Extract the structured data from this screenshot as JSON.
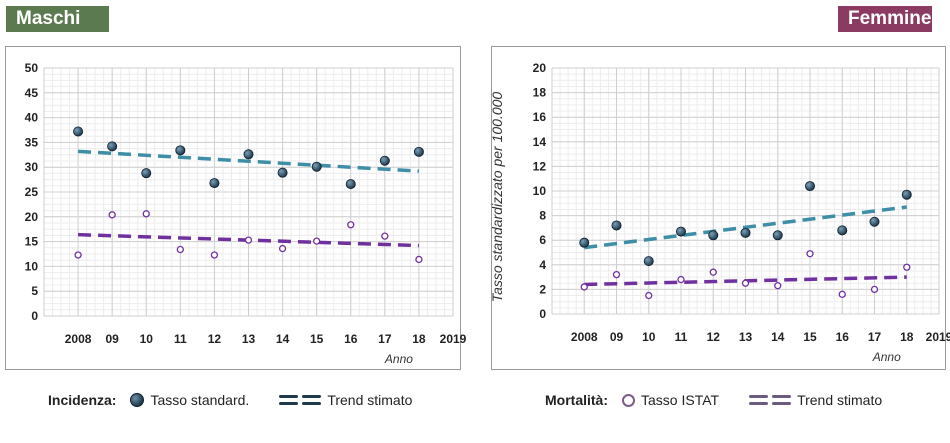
{
  "badges": {
    "male": "Maschi",
    "female": "Femmine"
  },
  "legend": {
    "left_title": "Incidenza:",
    "left_marker": "Tasso  standard.",
    "left_trend": "Trend stimato",
    "right_title": "Mortalità:",
    "right_marker": "Tasso ISTAT",
    "right_trend": "Trend stimato"
  },
  "colors": {
    "teal_trend": "#3d8ea6",
    "purple_trend": "#7030a0",
    "purple_marker": "#7030a0",
    "navy_marker": "#1f3a4d",
    "male_badge": "#5b7a4f",
    "female_badge": "#8b3a62",
    "legend_dash_left": "#1f3a4d",
    "legend_dash_right": "#6a5a80"
  },
  "chart_data": [
    {
      "type": "scatter",
      "panel": "Maschi",
      "xlabel": "Anno",
      "ylabel": "",
      "ylim": [
        0,
        50
      ],
      "yticks": [
        0,
        5,
        10,
        15,
        20,
        25,
        30,
        35,
        40,
        45,
        50
      ],
      "xticks": [
        {
          "value": 2008,
          "label": "2008"
        },
        {
          "value": 2009,
          "label": "09"
        },
        {
          "value": 2010,
          "label": "10"
        },
        {
          "value": 2011,
          "label": "11"
        },
        {
          "value": 2012,
          "label": "12"
        },
        {
          "value": 2013,
          "label": "13"
        },
        {
          "value": 2014,
          "label": "14"
        },
        {
          "value": 2015,
          "label": "15"
        },
        {
          "value": 2016,
          "label": "16"
        },
        {
          "value": 2017,
          "label": "17"
        },
        {
          "value": 2018,
          "label": "18"
        },
        {
          "value": 2019,
          "label": "2019"
        }
      ],
      "x": [
        2008,
        2009,
        2010,
        2011,
        2012,
        2013,
        2014,
        2015,
        2016,
        2017,
        2018
      ],
      "series": [
        {
          "name": "Incidenza - Tasso standard.",
          "marker": "filled",
          "values": [
            37.2,
            34.2,
            28.8,
            33.4,
            26.8,
            32.6,
            28.9,
            30.1,
            26.6,
            31.3,
            33.1
          ]
        },
        {
          "name": "Mortalità - Tasso ISTAT",
          "marker": "open",
          "values": [
            12.3,
            20.4,
            20.6,
            13.4,
            12.3,
            15.3,
            13.6,
            15.1,
            18.4,
            16.1,
            11.4
          ]
        }
      ],
      "trends": [
        {
          "name": "Trend stimato incidenza",
          "color_key": "teal_trend",
          "x": [
            2008,
            2018
          ],
          "y": [
            33.2,
            29.2
          ]
        },
        {
          "name": "Trend stimato mortalità",
          "color_key": "purple_trend",
          "x": [
            2008,
            2018
          ],
          "y": [
            16.4,
            14.2
          ]
        }
      ]
    },
    {
      "type": "scatter",
      "panel": "Femmine",
      "xlabel": "Anno",
      "ylabel": "Tasso standardizzato per 100.000",
      "ylim": [
        0,
        20
      ],
      "yticks": [
        0,
        2,
        4,
        6,
        8,
        10,
        12,
        14,
        16,
        18,
        20
      ],
      "xticks": [
        {
          "value": 2008,
          "label": "2008"
        },
        {
          "value": 2009,
          "label": "09"
        },
        {
          "value": 2010,
          "label": "10"
        },
        {
          "value": 2011,
          "label": "11"
        },
        {
          "value": 2012,
          "label": "12"
        },
        {
          "value": 2013,
          "label": "13"
        },
        {
          "value": 2014,
          "label": "14"
        },
        {
          "value": 2015,
          "label": "15"
        },
        {
          "value": 2016,
          "label": "16"
        },
        {
          "value": 2017,
          "label": "17"
        },
        {
          "value": 2018,
          "label": "18"
        },
        {
          "value": 2019,
          "label": "2019"
        }
      ],
      "x": [
        2008,
        2009,
        2010,
        2011,
        2012,
        2013,
        2014,
        2015,
        2016,
        2017,
        2018
      ],
      "series": [
        {
          "name": "Incidenza - Tasso standard.",
          "marker": "filled",
          "values": [
            5.8,
            7.2,
            4.3,
            6.7,
            6.4,
            6.6,
            6.4,
            10.4,
            6.8,
            7.5,
            9.7
          ]
        },
        {
          "name": "Mortalità - Tasso ISTAT",
          "marker": "open",
          "values": [
            2.2,
            3.2,
            1.5,
            2.8,
            3.4,
            2.5,
            2.3,
            4.9,
            1.6,
            2.0,
            3.8
          ]
        }
      ],
      "trends": [
        {
          "name": "Trend stimato incidenza",
          "color_key": "teal_trend",
          "x": [
            2008,
            2018
          ],
          "y": [
            5.4,
            8.7
          ]
        },
        {
          "name": "Trend stimato mortalità",
          "color_key": "purple_trend",
          "x": [
            2008,
            2018
          ],
          "y": [
            2.4,
            3.0
          ]
        }
      ]
    }
  ]
}
